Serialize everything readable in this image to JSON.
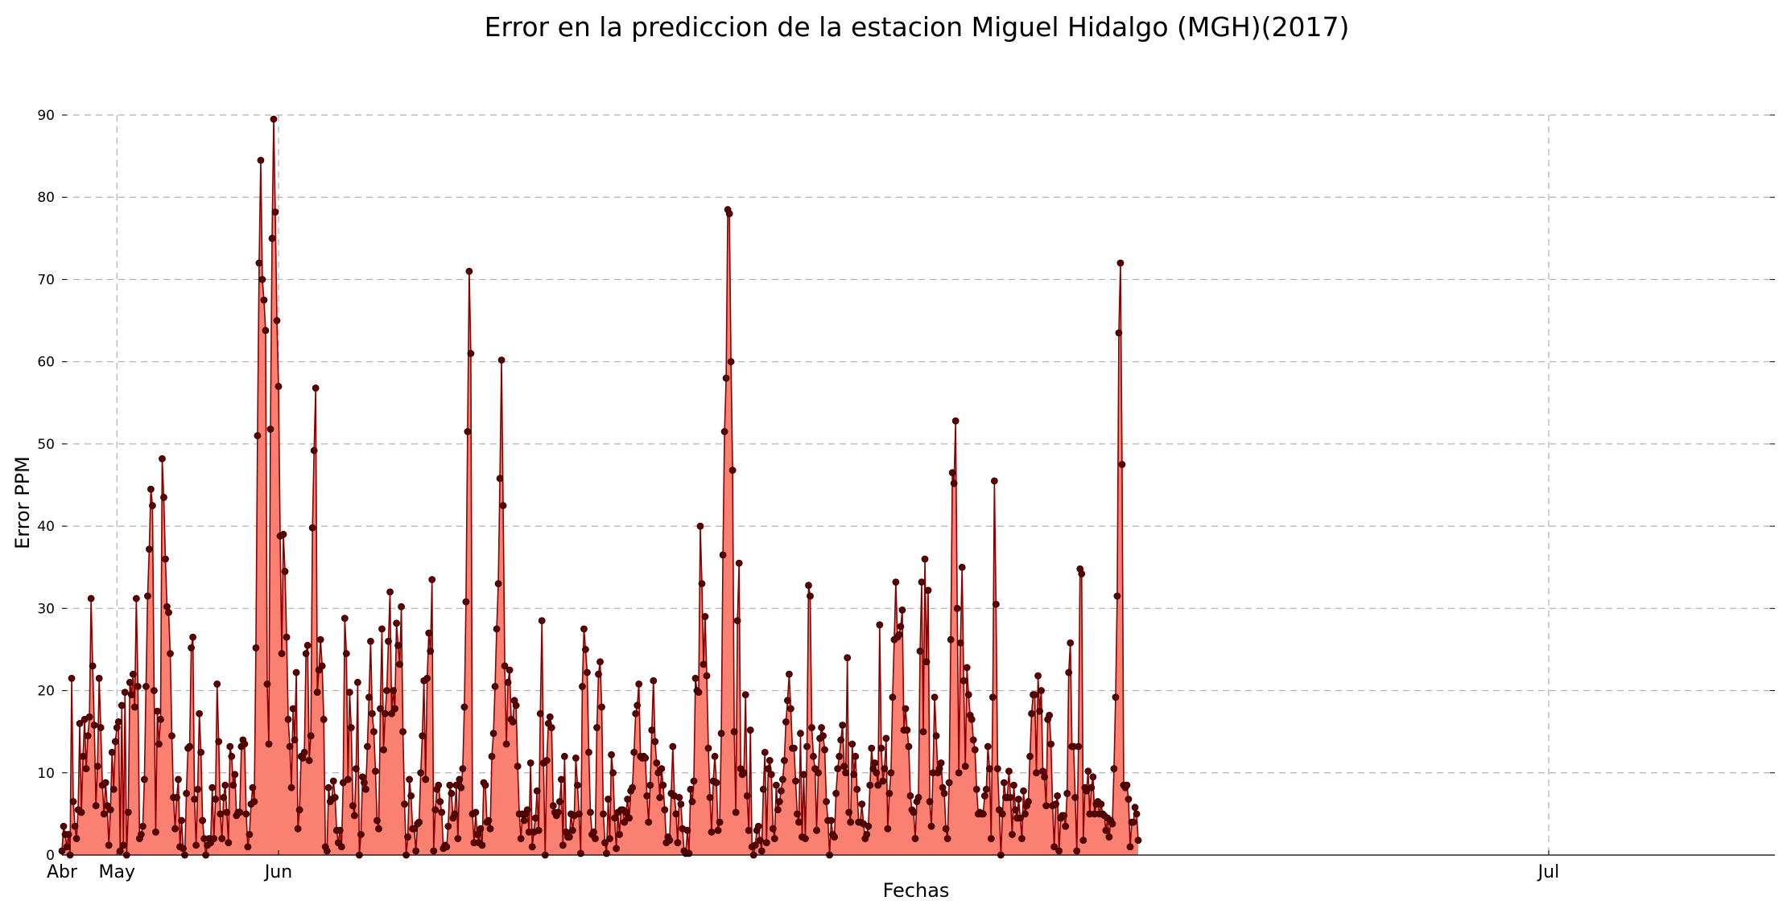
{
  "chart_data": {
    "type": "area",
    "title": "Error en la prediccion de la estacion Miguel Hidalgo (MGH)(2017)",
    "xlabel": "Fechas",
    "ylabel": "Error PPM",
    "ylim": [
      0,
      90
    ],
    "xlim": [
      0,
      1060
    ],
    "yticks": [
      0,
      10,
      20,
      30,
      40,
      50,
      60,
      70,
      80,
      90
    ],
    "xticks": [
      {
        "label": "Abr",
        "x": 0
      },
      {
        "label": "May",
        "x": 34
      },
      {
        "label": "Jun",
        "x": 134
      },
      {
        "label": "Jul",
        "x": 920
      }
    ],
    "grid": true,
    "colors": {
      "fill": "#fa8072",
      "line": "#8b0000",
      "marker": "#5c0000"
    },
    "series": [
      {
        "values": [
          0.5,
          3.5,
          2.5,
          1,
          2.5,
          0,
          21.5,
          6.5,
          3.5,
          2,
          5.5,
          16,
          5.2,
          12,
          16.5,
          10.5,
          14.5,
          16.8,
          31.2,
          23,
          15.8,
          6,
          10.8,
          21.5,
          15.5,
          8.5,
          5,
          8.8,
          6,
          1.2,
          5.5,
          12.5,
          8,
          13.8,
          15.5,
          16.2,
          0.5,
          18.2,
          1.2,
          19.8,
          0,
          5.2,
          21,
          19.5,
          22,
          18,
          31.2,
          20.5,
          2,
          2.5,
          3.5,
          9.2,
          20.5,
          31.5,
          37.2,
          44.5,
          42.5,
          20,
          2.8,
          17.5,
          13.5,
          16.5,
          48.2,
          43.5,
          36,
          30.2,
          29.5,
          24.5,
          14.5,
          7,
          3.2,
          7,
          9.2,
          1,
          4.2,
          0.8,
          0,
          7.5,
          13,
          13.2,
          25.2,
          26.5,
          6.8,
          1.2,
          8,
          17.2,
          12.5,
          4.2,
          2,
          0,
          1.2,
          2,
          1.5,
          8.2,
          2,
          6.8,
          20.8,
          13.8,
          5,
          2,
          7,
          8.5,
          5.2,
          1.5,
          13.2,
          12,
          8.5,
          9.8,
          4.8,
          5.2,
          5.2,
          13.2,
          14,
          13.5,
          5,
          1,
          2.5,
          6.2,
          8.2,
          6.5,
          25.2,
          51,
          72,
          84.5,
          70,
          67.5,
          63.8,
          20.8,
          13.5,
          51.8,
          75,
          89.5,
          78.2,
          65,
          57,
          38.8,
          24.5,
          39,
          34.5,
          26.5,
          16.5,
          13.2,
          8.2,
          17.8,
          14,
          22.2,
          3.2,
          5.5,
          12,
          11.8,
          12.5,
          24.5,
          25.5,
          11.5,
          14.5,
          39.8,
          49.2,
          56.8,
          19.8,
          22.5,
          26.2,
          23,
          16.5,
          1,
          0.5,
          8.2,
          6.5,
          6.8,
          9,
          7,
          3,
          1.5,
          3,
          1,
          8.8,
          28.8,
          24.5,
          9.2,
          19.8,
          15.5,
          6,
          4.8,
          10.5,
          21,
          0,
          2.5,
          9.5,
          8.8,
          8,
          13.2,
          19.2,
          26,
          17.2,
          15,
          10.2,
          4.2,
          3.2,
          17.8,
          27.5,
          12.8,
          17.2,
          20,
          26,
          32,
          17.2,
          20,
          17.8,
          28.2,
          25.5,
          23.2,
          30.2,
          15,
          6.2,
          0,
          2.2,
          9.2,
          7.2,
          3.2,
          3.2,
          0.5,
          3.8,
          4,
          10,
          14.5,
          21.2,
          9.2,
          21.5,
          27,
          24.8,
          33.5,
          0.5,
          5.5,
          8,
          8.5,
          6.5,
          5.2,
          0.8,
          1.2,
          1,
          3.5,
          8.5,
          7.5,
          4.5,
          5,
          8.5,
          2,
          9.2,
          8.2,
          10.5,
          18,
          30.8,
          51.5,
          71,
          61,
          5,
          1.5,
          5.2,
          2.5,
          1.5,
          3.2,
          1.2,
          8.8,
          8.5,
          4,
          4.2,
          3.2,
          12,
          14.8,
          20.5,
          27.5,
          33,
          45.8,
          60.2,
          42.5,
          23,
          13.5,
          21,
          22.5,
          16.5,
          16.2,
          18.8,
          18.2,
          10.8,
          5,
          2,
          5,
          4.2,
          5,
          5.5,
          2.8,
          11.2,
          1,
          2.8,
          4.5,
          7.8,
          3,
          17.2,
          28.5,
          11.2,
          0,
          11.5,
          16,
          16.8,
          15.5,
          6,
          5.2,
          4.8,
          5.2,
          6.5,
          9.2,
          1.2,
          12,
          2.8,
          2.2,
          2.2,
          5,
          3,
          4.8,
          11.8,
          8.5,
          5,
          0.2,
          20.5,
          27.5,
          25,
          22.2,
          12.5,
          5.2,
          2.5,
          2.8,
          2,
          15.5,
          22,
          23.5,
          18,
          5,
          1.5,
          0.2,
          6.8,
          2,
          12.2,
          10,
          4.5,
          0.8,
          5.2,
          2.5,
          5.5,
          5.5,
          4,
          5.2,
          6.8,
          4.5,
          7.8,
          8.2,
          12.5,
          17.2,
          18.2,
          20.8,
          12,
          11.8,
          12,
          11.8,
          7.2,
          4,
          8.5,
          15.2,
          21.2,
          13.8,
          11.2,
          10,
          7,
          10.5,
          8.5,
          5.5,
          1.5,
          2.2,
          1.8,
          7.5,
          13.2,
          7.2,
          5,
          1.5,
          7,
          6.2,
          3.2,
          0.5,
          0.2,
          3,
          0.2,
          8,
          6.5,
          9,
          21.5,
          20,
          19.8,
          40,
          33,
          23.2,
          29,
          21.8,
          13,
          7,
          2.8,
          9,
          12,
          8.8,
          3,
          4,
          14.8,
          36.5,
          51.5,
          58,
          78.5,
          78,
          60,
          46.8,
          15,
          5.2,
          28.5,
          35.5,
          10.5,
          9.8,
          10,
          19.5,
          7.2,
          3,
          15.2,
          1,
          0,
          1.2,
          3,
          3.5,
          1.8,
          0.5,
          8,
          12.5,
          1.5,
          10.5,
          11.5,
          9.8,
          3.2,
          2,
          8.5,
          5.5,
          6.5,
          7.8,
          9.2,
          11.5,
          16.2,
          18.8,
          22,
          17.8,
          13,
          13,
          9,
          5,
          4,
          14.8,
          2.2,
          9.8,
          2,
          13.2,
          32.8,
          31.5,
          15.5,
          12,
          10.5,
          3,
          10,
          14.2,
          15.5,
          14.5,
          12.8,
          6.5,
          4.2,
          0,
          4.2,
          2.5,
          2.2,
          7.5,
          10.5,
          12,
          14,
          15.8,
          10.8,
          10,
          24,
          5.2,
          4,
          13.5,
          9.8,
          12,
          8,
          4,
          4,
          6.2,
          3.8,
          2,
          2.5,
          3.5,
          8.5,
          13,
          10.5,
          11.2,
          10,
          8.5,
          28,
          13,
          9,
          10.5,
          14.2,
          3.2,
          7.5,
          10,
          19.2,
          26.2,
          33.2,
          26.5,
          26.8,
          27.8,
          29.8,
          15.2,
          17.8,
          15.2,
          13.2,
          7.2,
          5.5,
          5.2,
          2,
          6.5,
          7,
          24.8,
          33.2,
          15,
          36,
          23.5,
          32.2,
          6.5,
          3.5,
          10,
          19.2,
          14.5,
          10,
          10.5,
          11.2,
          8.2,
          7.5,
          3.2,
          2,
          8.8,
          26.2,
          46.5,
          45.2,
          52.8,
          30,
          10,
          25.8,
          35,
          21.2,
          10.8,
          22.8,
          19.5,
          17,
          16.5,
          14,
          12.8,
          8,
          5,
          5.2,
          5,
          5,
          7.2,
          8,
          13.2,
          10.5,
          2,
          19.2,
          45.5,
          30.5,
          10.5,
          5.5,
          0,
          5,
          8.8,
          7,
          7,
          10.2,
          7,
          2.5,
          8.5,
          5.5,
          4.5,
          6.8,
          4.5,
          2,
          7.8,
          5,
          6,
          6.5,
          12,
          17.2,
          19.5,
          19.5,
          10,
          21.8,
          17.5,
          20,
          10.2,
          9.5,
          6,
          16.5,
          17,
          13.5,
          6,
          1,
          6.2,
          7.2,
          0.5,
          4.5,
          4.8,
          4.8,
          3.5,
          7.5,
          22.2,
          25.8,
          13.2,
          13.2,
          7,
          0.5,
          13.2,
          34.8,
          34.2,
          1.8,
          8.2,
          7.8,
          10.2,
          5,
          8.2,
          9.5,
          5,
          6.2,
          6.5,
          5,
          6.2,
          5,
          4.8,
          3,
          4.5,
          2.2,
          4.2,
          3.8,
          10.5,
          19.2,
          31.5,
          63.5,
          72,
          47.5,
          8.5,
          8.2,
          8.5,
          6.8,
          1,
          4,
          4,
          5.8,
          5,
          1.8
        ]
      }
    ]
  }
}
